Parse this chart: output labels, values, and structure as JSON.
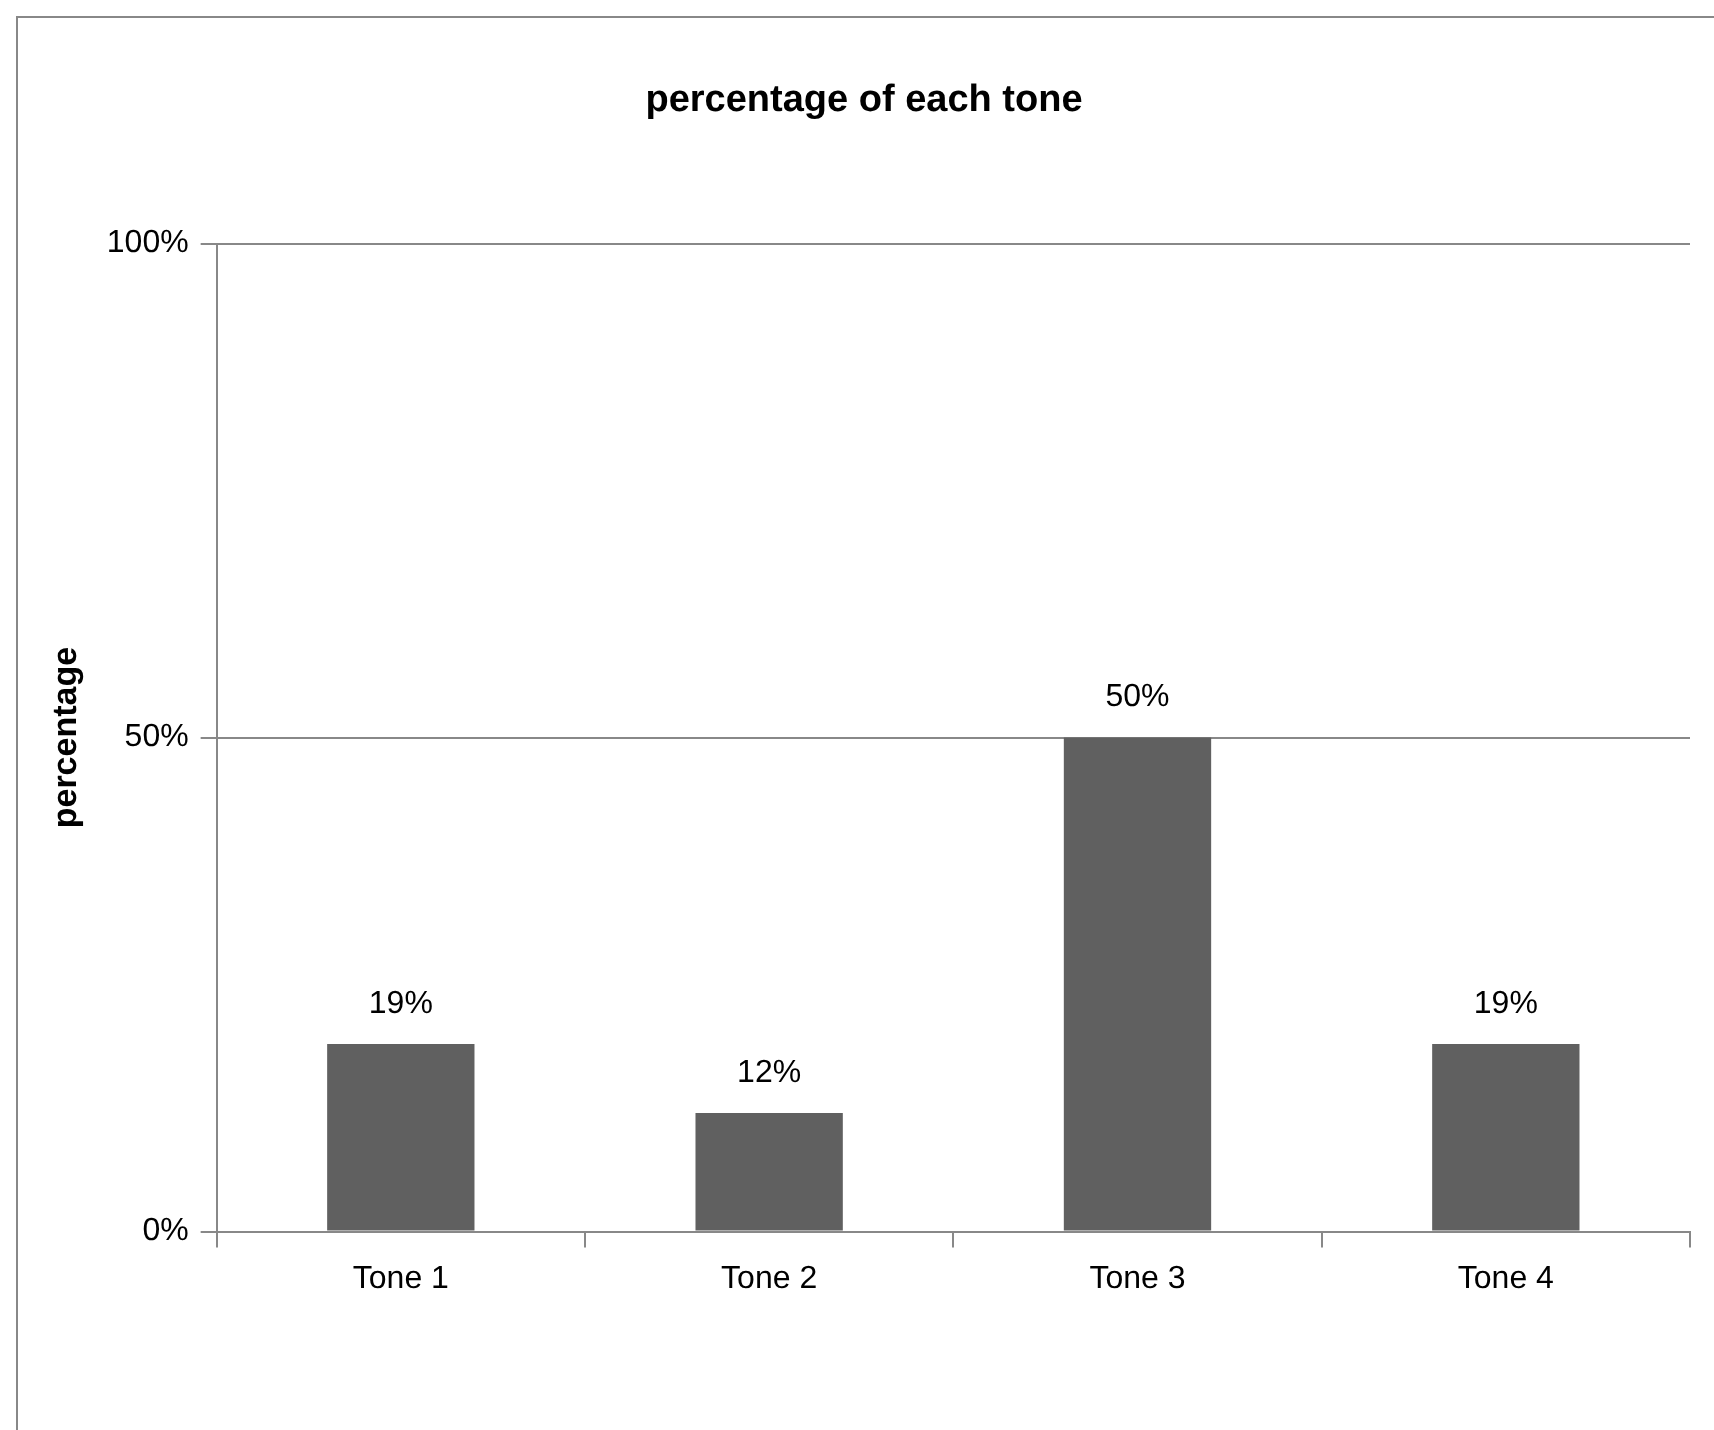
{
  "chart_data": {
    "type": "bar",
    "title": "percentage of each tone",
    "ylabel": "percentage",
    "categories": [
      "Tone 1",
      "Tone 2",
      "Tone 3",
      "Tone 4"
    ],
    "values": [
      19,
      12,
      50,
      19
    ],
    "value_labels": [
      "19%",
      "12%",
      "50%",
      "19%"
    ],
    "color": "#606060",
    "ylim": [
      0,
      100
    ],
    "yticks": [
      {
        "value": 0,
        "label": "0%"
      },
      {
        "value": 50,
        "label": "50%"
      },
      {
        "value": 100,
        "label": "100%"
      }
    ],
    "grid": "y",
    "legend": false
  }
}
